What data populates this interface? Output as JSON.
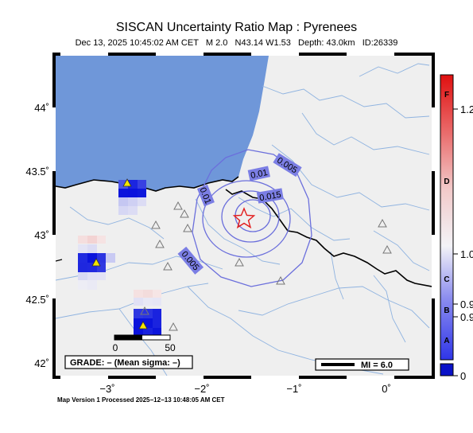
{
  "header": {
    "title": "SISCAN Uncertainty Ratio Map : Pyrenees",
    "subtitle": "Dec 13, 2025 10:45:02 AM CET   M 2.0   N43.14 W1.53   Depth: 43.0km   ID:26339"
  },
  "map": {
    "lon_range": [
      -3.55,
      0.45
    ],
    "lat_range": [
      41.9,
      44.45
    ],
    "lon_ticks": [
      "−3˚",
      "−2˚",
      "−1˚",
      "0˚"
    ],
    "lat_ticks": [
      "44˚",
      "43.5˚",
      "43˚",
      "42.5˚",
      "42˚"
    ],
    "epicenter": {
      "lat": 43.14,
      "lon": -1.53
    },
    "contour_labels": [
      "0.005",
      "0.01",
      "0.015",
      "0.01",
      "0.005"
    ],
    "scale_bar": {
      "labels": [
        "0",
        "50"
      ]
    },
    "grade_box": "GRADE: – (Mean sigma: –)",
    "mi_legend": "MI = 6.0",
    "colors": {
      "sea": "#6f97d9",
      "land": "#efefef",
      "river": "#8fb3e0",
      "contour": "#6b6fdc",
      "star": "#e21b1b"
    }
  },
  "colorbar": {
    "letters": [
      "F",
      "D",
      "C",
      "B",
      "A"
    ],
    "values": [
      "1.2",
      "1.0",
      "0.9",
      "0.9",
      "0"
    ]
  },
  "footer": "Map Version 1 Processed 2025−12−13 10:48:05 AM CET"
}
